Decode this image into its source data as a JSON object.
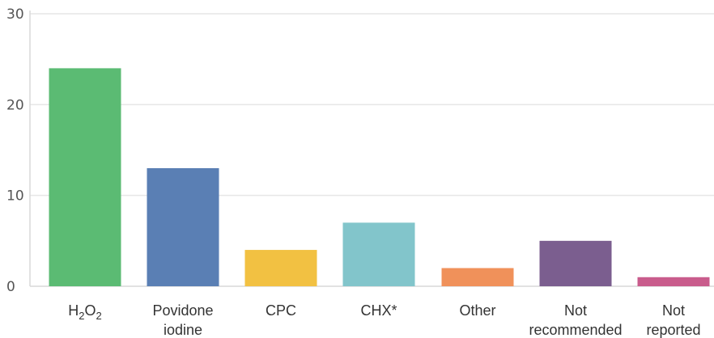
{
  "chart_data": {
    "type": "bar",
    "title": "",
    "xlabel": "",
    "ylabel": "",
    "ylim": [
      0,
      30
    ],
    "yticks": [
      "0",
      "10",
      "20",
      "30"
    ],
    "grid": true,
    "legend": "none",
    "categories": [
      {
        "lines": [
          {
            "text": "H",
            "sub": ""
          },
          {
            "text": "O",
            "sub": ""
          }
        ],
        "label": "H2O2"
      },
      {
        "lines": [
          "Povidone",
          "iodine"
        ],
        "label": "Povidone iodine"
      },
      {
        "lines": [
          "CPC"
        ],
        "label": "CPC"
      },
      {
        "lines": [
          "CHX*"
        ],
        "label": "CHX*"
      },
      {
        "lines": [
          "Other"
        ],
        "label": "Other"
      },
      {
        "lines": [
          "Not",
          "recommended"
        ],
        "label": "Not recommended"
      },
      {
        "lines": [
          "Not",
          "reported"
        ],
        "label": "Not reported"
      }
    ],
    "values": [
      24,
      13,
      4,
      7,
      2,
      5,
      1
    ],
    "colors": [
      "#5bbb73",
      "#5a7fb4",
      "#f2c142",
      "#82c5cb",
      "#f0915a",
      "#7b5e8f",
      "#c95c8c"
    ]
  }
}
